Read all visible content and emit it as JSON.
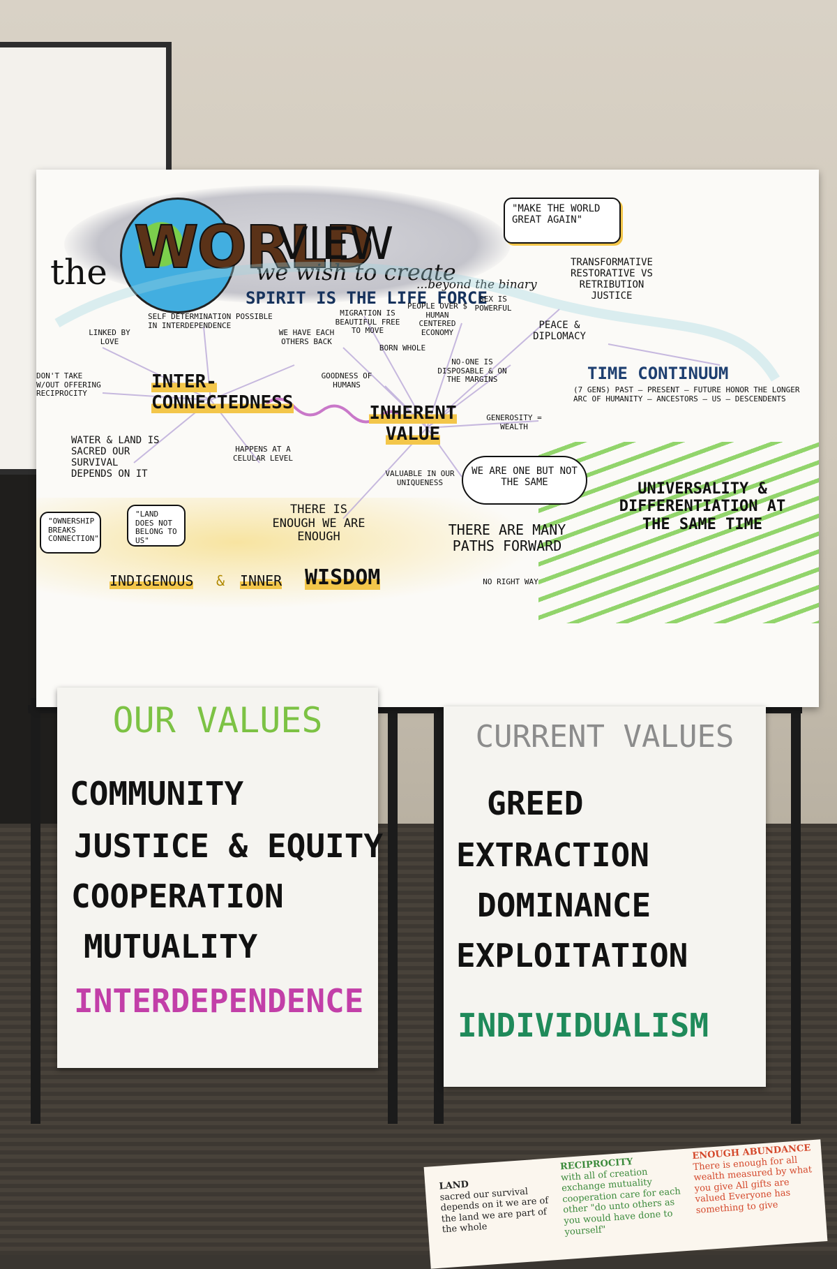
{
  "poster": {
    "title_the": "the",
    "title_world": "WORLD",
    "title_view": "VIEW",
    "title_sub": "we wish to create",
    "title_binary": "...beyond the binary",
    "quote_maga": "\"MAKE THE WORLD GREAT AGAIN\"",
    "transformative": "TRANSFORMATIVE RESTORATIVE VS RETRIBUTION JUSTICE",
    "spirit": "SPIRIT IS THE LIFE FORCE",
    "linked_by_love": "LINKED BY LOVE",
    "self_determination": "SELF DETERMINATION POSSIBLE IN INTERDEPENDENCE",
    "migration": "MIGRATION IS BEAUTIFUL FREE TO MOVE",
    "people_over": "PEOPLE OVER $ HUMAN CENTERED ECONOMY",
    "sex_powerful": "SEX IS POWERFUL",
    "each_others_back": "WE HAVE EACH OTHERS BACK",
    "born_whole": "BORN WHOLE",
    "peace": "PEACE & DIPLOMACY",
    "dont_take": "DON'T TAKE w/out OFFERING RECIPROCITY",
    "interconnectedness": "INTER-CONNECTEDNESS",
    "goodness": "GOODNESS OF HUMANS",
    "no_one_disposable": "NO-ONE IS DISPOSABLE & ON THE MARGINS",
    "time_continuum": "TIME CONTINUUM",
    "time_detail": "(7 GENS) PAST — PRESENT — FUTURE HONOR THE LONGER ARC OF HUMANITY — ANCESTORS — US — DESCENDENTS",
    "inherent_value": "INHERENT VALUE",
    "generosity": "GENEROSITY = WEALTH",
    "water_land": "WATER & LAND IS SACRED OUR SURVIVAL DEPENDS ON IT",
    "cellular": "HAPPENS AT A CELULAR LEVEL",
    "valuable": "VALUABLE IN OUR UNIQUENESS",
    "we_are_one": "WE ARE ONE BUT NOT THE SAME",
    "universality": "UNIVERSALITY & DIFFERENTIATION at the same TIME",
    "ownership": "\"OWNERSHIP BREAKS CONNECTION\"",
    "land_does_not": "\"LAND DOES NOT BELONG TO US\"",
    "there_is_enough": "THERE IS ENOUGH WE ARE ENOUGH",
    "many_paths": "THERE ARE MANY PATHS FORWARD",
    "no_right_way": "NO RIGHT WAY",
    "indigenous": "INDIGENOUS",
    "amp": "&",
    "inner": "INNER",
    "wisdom": "WISDOM"
  },
  "our_values": {
    "title": "OUR VALUES",
    "items": [
      "COMMUNITY",
      "JUSTICE & EQUITY",
      "COOPERATION",
      "MUTUALITY"
    ],
    "highlight": "INTERDEPENDENCE"
  },
  "current_values": {
    "title": "CURRENT VALUES",
    "items": [
      "GREED",
      "EXTRACTION",
      "DOMINANCE",
      "EXPLOITATION"
    ],
    "highlight": "INDIVIDUALISM"
  },
  "floor_sheet": {
    "land_title": "LAND",
    "land_text": "sacred our survival depends on it we are of the land we are part of the whole",
    "reciprocity_title": "RECIPROCITY",
    "reciprocity_text": "with all of creation exchange mutuality cooperation care for each other \"do unto others as you would have done to yourself\"",
    "enough_title": "ENOUGH ABUNDANCE",
    "enough_text": "There is enough for all wealth measured by what you give All gifts are valued Everyone has something to give"
  },
  "colors": {
    "our_values_green": "#7cc244",
    "current_values_gray": "#8c8c8c",
    "interdependence_magenta": "#c23fa8",
    "individualism_green": "#1f8a5a",
    "highlight_yellow": "#f3c64a",
    "wisdom_brown": "#5a3218"
  }
}
